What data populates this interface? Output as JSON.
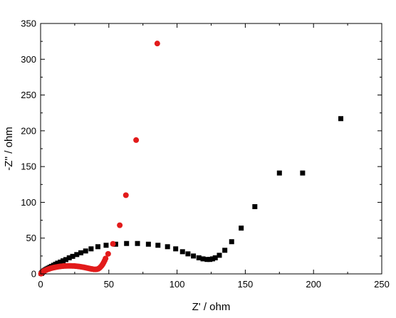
{
  "chart_data": {
    "type": "scatter",
    "title": "",
    "xlabel": "Z' / ohm",
    "ylabel": "-Z'' / ohm",
    "xlim": [
      0,
      250
    ],
    "ylim": [
      0,
      350
    ],
    "x_ticks": [
      0,
      50,
      100,
      150,
      200,
      250
    ],
    "y_ticks": [
      0,
      50,
      100,
      150,
      200,
      250,
      300,
      350
    ],
    "x_tick_labels": [
      "0",
      "50",
      "100",
      "150",
      "200",
      "250"
    ],
    "y_tick_labels": [
      "0",
      "50",
      "100",
      "150",
      "200",
      "250",
      "300",
      "350"
    ],
    "grid": false,
    "legend": "none",
    "series": [
      {
        "marker": "square",
        "color": "#000000",
        "points": [
          [
            0.5,
            0.5
          ],
          [
            0.8,
            1.2
          ],
          [
            1.2,
            2
          ],
          [
            1.7,
            3
          ],
          [
            2.3,
            4
          ],
          [
            3,
            5
          ],
          [
            3.8,
            6
          ],
          [
            4.7,
            7
          ],
          [
            5.7,
            8
          ],
          [
            6.8,
            9.2
          ],
          [
            8,
            10.5
          ],
          [
            9.5,
            12
          ],
          [
            11,
            13.5
          ],
          [
            12.5,
            15
          ],
          [
            14.5,
            16.5
          ],
          [
            16.5,
            18.3
          ],
          [
            18.5,
            20
          ],
          [
            21,
            22.5
          ],
          [
            23.5,
            24.5
          ],
          [
            26.5,
            27
          ],
          [
            29.5,
            29.5
          ],
          [
            33,
            32
          ],
          [
            37,
            35
          ],
          [
            42,
            38
          ],
          [
            48,
            40
          ],
          [
            55,
            41.5
          ],
          [
            63,
            42.5
          ],
          [
            71,
            42.5
          ],
          [
            79,
            41.5
          ],
          [
            86,
            40
          ],
          [
            93,
            38
          ],
          [
            99,
            35
          ],
          [
            104,
            31
          ],
          [
            108,
            28
          ],
          [
            112,
            25
          ],
          [
            116,
            22.5
          ],
          [
            119,
            21
          ],
          [
            122,
            20.2
          ],
          [
            124,
            20.2
          ],
          [
            126,
            21
          ],
          [
            128,
            22.5
          ],
          [
            131,
            26
          ],
          [
            135,
            33
          ],
          [
            140,
            45
          ],
          [
            147,
            64
          ],
          [
            157,
            94
          ],
          [
            175,
            141
          ],
          [
            192,
            141
          ],
          [
            220,
            217
          ]
        ]
      },
      {
        "marker": "circle",
        "color": "#e21b1b",
        "points": [
          [
            0.3,
            0.3
          ],
          [
            0.6,
            1
          ],
          [
            1,
            1.8
          ],
          [
            1.5,
            2.6
          ],
          [
            2,
            3.3
          ],
          [
            2.6,
            4
          ],
          [
            3.3,
            4.7
          ],
          [
            4,
            5.3
          ],
          [
            4.8,
            6
          ],
          [
            5.6,
            6.6
          ],
          [
            6.5,
            7.2
          ],
          [
            7.5,
            7.8
          ],
          [
            8.5,
            8.3
          ],
          [
            9.5,
            8.8
          ],
          [
            10.5,
            9.2
          ],
          [
            11.6,
            9.6
          ],
          [
            12.7,
            10
          ],
          [
            13.8,
            10.3
          ],
          [
            15,
            10.6
          ],
          [
            16.2,
            10.8
          ],
          [
            17.4,
            11
          ],
          [
            18.6,
            11.1
          ],
          [
            19.8,
            11.2
          ],
          [
            21,
            11.2
          ],
          [
            22.2,
            11.2
          ],
          [
            23.4,
            11.1
          ],
          [
            24.6,
            11
          ],
          [
            25.8,
            10.8
          ],
          [
            27,
            10.6
          ],
          [
            28.2,
            10.3
          ],
          [
            29.4,
            10
          ],
          [
            30.6,
            9.6
          ],
          [
            31.8,
            9.2
          ],
          [
            33,
            8.7
          ],
          [
            34.2,
            8.2
          ],
          [
            35.4,
            7.7
          ],
          [
            36.6,
            7.2
          ],
          [
            37.8,
            6.8
          ],
          [
            39,
            6.4
          ],
          [
            40.2,
            6.3
          ],
          [
            41.3,
            6.5
          ],
          [
            42.3,
            7.2
          ],
          [
            43.2,
            8.3
          ],
          [
            44,
            9.8
          ],
          [
            44.8,
            11.5
          ],
          [
            45.5,
            13.5
          ],
          [
            46.2,
            15.8
          ],
          [
            46.9,
            18.5
          ],
          [
            47.6,
            21.5
          ],
          [
            49.5,
            28
          ],
          [
            53,
            42
          ],
          [
            58,
            68
          ],
          [
            62.5,
            110
          ],
          [
            70,
            187
          ],
          [
            85.5,
            322
          ]
        ]
      }
    ]
  }
}
